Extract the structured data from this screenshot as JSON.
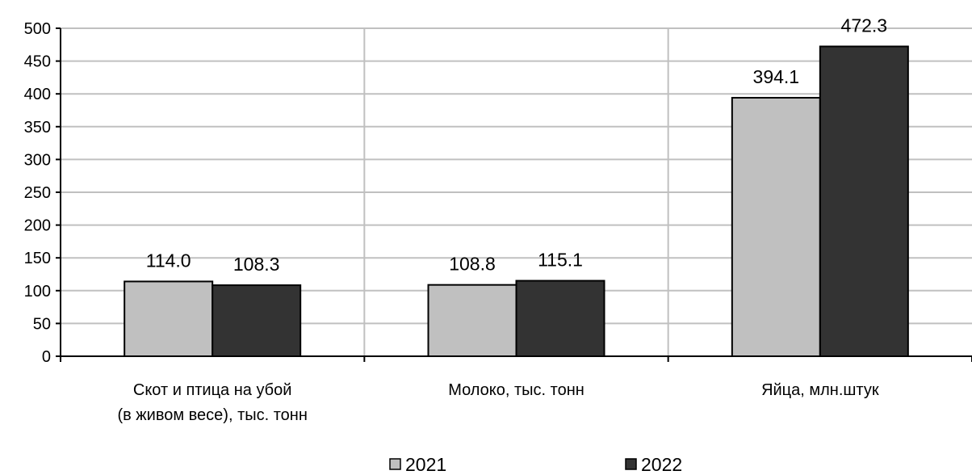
{
  "chart_data": {
    "type": "bar",
    "title": "",
    "xlabel": "",
    "ylabel": "",
    "ylim": [
      0,
      500
    ],
    "yticks": [
      0,
      50,
      100,
      150,
      200,
      250,
      300,
      350,
      400,
      450,
      500
    ],
    "grid": true,
    "legend_position": "bottom",
    "categories": [
      [
        "Скот и птица на убой",
        "(в живом весе), тыс. тонн"
      ],
      [
        "Молоко, тыс. тонн"
      ],
      [
        "Яйца, млн.штук"
      ]
    ],
    "series": [
      {
        "name": "2021",
        "values": [
          114.0,
          108.8,
          394.1
        ],
        "labels": [
          "114.0",
          "108.8",
          "394.1"
        ],
        "color": "#c0c0c0"
      },
      {
        "name": "2022",
        "values": [
          108.3,
          115.1,
          472.3
        ],
        "labels": [
          "108.3",
          "115.1",
          "472.3"
        ],
        "color": "#333333"
      }
    ],
    "gridline_color": "#c0c0c0",
    "axis_color": "#000000"
  }
}
